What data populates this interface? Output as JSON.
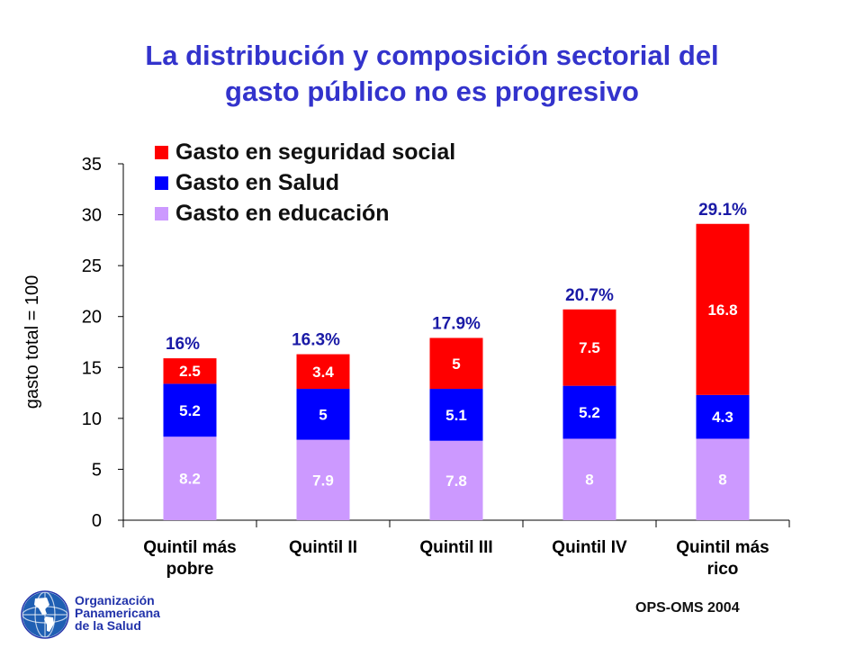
{
  "title": {
    "line1": "La distribución y composición sectorial del",
    "line2": "gasto público no es progresivo"
  },
  "legend": [
    {
      "label": "Gasto en seguridad social",
      "color": "#ff0000"
    },
    {
      "label": "Gasto en Salud",
      "color": "#0000ff"
    },
    {
      "label": "Gasto en educación",
      "color": "#cc99ff"
    }
  ],
  "chart_data": {
    "type": "bar",
    "stacked": true,
    "ylabel": "gasto total = 100",
    "ylim": [
      0,
      35
    ],
    "yticks": [
      0,
      5,
      10,
      15,
      20,
      25,
      30,
      35
    ],
    "categories": [
      "Quintil más pobre",
      "Quintil II",
      "Quintil III",
      "Quintil IV",
      "Quintil más rico"
    ],
    "category_lines": [
      [
        "Quintil más",
        "pobre"
      ],
      [
        "Quintil II"
      ],
      [
        "Quintil III"
      ],
      [
        "Quintil IV"
      ],
      [
        "Quintil más",
        "rico"
      ]
    ],
    "series": [
      {
        "name": "Gasto en educación",
        "color": "#cc99ff",
        "values": [
          8.2,
          7.9,
          7.8,
          8,
          8
        ],
        "labels": [
          "8.2",
          "7.9",
          "7.8",
          "8",
          "8"
        ]
      },
      {
        "name": "Gasto en Salud",
        "color": "#0000ff",
        "values": [
          5.2,
          5,
          5.1,
          5.2,
          4.3
        ],
        "labels": [
          "5.2",
          "5",
          "5.1",
          "5.2",
          "4.3"
        ]
      },
      {
        "name": "Gasto en seguridad social",
        "color": "#ff0000",
        "values": [
          2.5,
          3.4,
          5,
          7.5,
          16.8
        ],
        "labels": [
          "2.5",
          "3.4",
          "5",
          "7.5",
          "16.8"
        ]
      }
    ],
    "totals": [
      "16%",
      "16.3%",
      "17.9%",
      "20.7%",
      "29.1%"
    ],
    "legend_position": "top-left"
  },
  "footer": {
    "org_line1": "Organización",
    "org_line2": "Panamericana",
    "org_line3": "de la Salud",
    "credit": "OPS-OMS 2004",
    "logo_icon": "globe-americas-icon"
  }
}
